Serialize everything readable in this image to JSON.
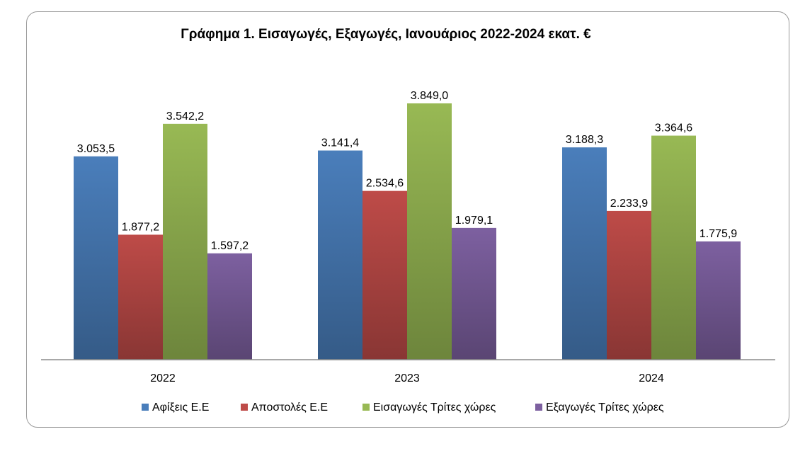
{
  "chart_data": {
    "type": "bar",
    "title": "Γράφημα 1. Εισαγωγές, Εξαγωγές, Ιανουάριος 2022-2024 εκατ. €",
    "categories": [
      "2022",
      "2023",
      "2024"
    ],
    "series": [
      {
        "name": "Αφίξεις Ε.Ε",
        "color": "#4a7ebb",
        "values": [
          3053.5,
          3141.4,
          3188.3
        ],
        "labels": [
          "3.053,5",
          "3.141,4",
          "3.188,3"
        ]
      },
      {
        "name": "Αποστολές  Ε.Ε",
        "color": "#be4b48",
        "values": [
          1877.2,
          2534.6,
          2233.9
        ],
        "labels": [
          "1.877,2",
          "2.534,6",
          "2.233,9"
        ]
      },
      {
        "name": "Εισαγωγές Τρίτες χώρες",
        "color": "#98b954",
        "values": [
          3542.2,
          3849.0,
          3364.6
        ],
        "labels": [
          "3.542,2",
          "3.849,0",
          "3.364,6"
        ]
      },
      {
        "name": "Εξαγωγές Τρίτες χώρες",
        "color": "#7d60a0",
        "values": [
          1597.2,
          1979.1,
          1775.9
        ],
        "labels": [
          "1.597,2",
          "1.979,1",
          "1.775,9"
        ]
      }
    ],
    "xlabel": "",
    "ylabel": "",
    "ylim": [
      0,
      4500
    ],
    "grid": false,
    "legend": "bottom"
  }
}
